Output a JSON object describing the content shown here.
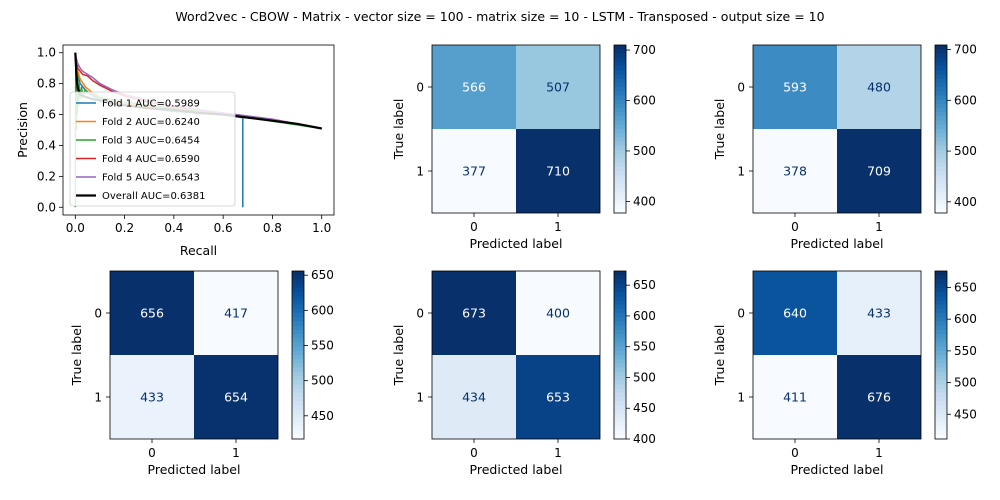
{
  "title": "Word2vec - CBOW - Matrix - vector size = 100 - matrix size = 10 - LSTM - Transposed - output size = 10",
  "chart_data": [
    {
      "type": "line",
      "xlabel": "Recall",
      "ylabel": "Precision",
      "xlim": [
        -0.05,
        1.05
      ],
      "ylim": [
        -0.05,
        1.05
      ],
      "xticks": [
        "0.0",
        "0.2",
        "0.4",
        "0.6",
        "0.8",
        "1.0"
      ],
      "yticks": [
        "0.0",
        "0.2",
        "0.4",
        "0.6",
        "0.8",
        "1.0"
      ],
      "legend_position": "lower-left",
      "series": [
        {
          "name": "Fold 1 AUC=0.5989",
          "color": "#1f77b4",
          "x": [
            0,
            0.005,
            0.01,
            0.02,
            0.04,
            0.07,
            0.1,
            0.15,
            0.2,
            0.3,
            0.4,
            0.5,
            0.6,
            0.68,
            0.68,
            0.68
          ],
          "y": [
            1.0,
            0.9,
            0.85,
            0.8,
            0.76,
            0.72,
            0.7,
            0.68,
            0.66,
            0.64,
            0.62,
            0.61,
            0.6,
            0.58,
            0.3,
            0.0
          ]
        },
        {
          "name": "Fold 2 AUC=0.6240",
          "color": "#ff7f0e",
          "x": [
            0,
            0.005,
            0.01,
            0.02,
            0.04,
            0.07,
            0.1,
            0.15,
            0.2,
            0.3,
            0.4,
            0.5,
            0.6,
            0.7,
            0.8,
            0.9,
            1.0
          ],
          "y": [
            1.0,
            0.92,
            0.88,
            0.83,
            0.78,
            0.74,
            0.71,
            0.69,
            0.67,
            0.65,
            0.63,
            0.62,
            0.6,
            0.58,
            0.56,
            0.54,
            0.51
          ]
        },
        {
          "name": "Fold 3 AUC=0.6454",
          "color": "#2ca02c",
          "x": [
            0,
            0.002,
            0.004,
            0.006,
            0.008,
            0.01,
            0.012,
            0.015,
            0.02,
            0.025,
            0.03,
            0.04,
            0.05,
            0.07,
            0.1,
            0.2,
            0.3,
            0.5,
            0.7,
            1.0
          ],
          "y": [
            0.0,
            1.0,
            0.5,
            0.9,
            0.6,
            0.85,
            0.65,
            0.8,
            0.7,
            0.78,
            0.72,
            0.76,
            0.74,
            0.73,
            0.71,
            0.68,
            0.66,
            0.62,
            0.58,
            0.51
          ]
        },
        {
          "name": "Fold 4 AUC=0.6590",
          "color": "#d62728",
          "x": [
            0,
            0.005,
            0.01,
            0.02,
            0.03,
            0.05,
            0.07,
            0.1,
            0.15,
            0.2,
            0.3,
            0.4,
            0.5,
            0.6,
            0.7,
            0.8,
            0.9,
            1.0
          ],
          "y": [
            1.0,
            0.95,
            0.9,
            0.88,
            0.86,
            0.85,
            0.82,
            0.79,
            0.75,
            0.72,
            0.68,
            0.65,
            0.63,
            0.61,
            0.59,
            0.57,
            0.54,
            0.51
          ]
        },
        {
          "name": "Fold 5 AUC=0.6543",
          "color": "#9467bd",
          "x": [
            0,
            0.005,
            0.01,
            0.02,
            0.03,
            0.05,
            0.07,
            0.1,
            0.15,
            0.2,
            0.3,
            0.4,
            0.5,
            0.6,
            0.7,
            0.8,
            0.9,
            1.0
          ],
          "y": [
            1.0,
            0.96,
            0.93,
            0.9,
            0.88,
            0.86,
            0.84,
            0.8,
            0.76,
            0.73,
            0.69,
            0.66,
            0.63,
            0.61,
            0.59,
            0.57,
            0.54,
            0.51
          ]
        },
        {
          "name": "Overall AUC=0.6381",
          "color": "#000000",
          "x": [
            0,
            0.003,
            0.006,
            0.01,
            0.02,
            0.03,
            0.05,
            0.07,
            0.1,
            0.15,
            0.2,
            0.3,
            0.4,
            0.5,
            0.6,
            0.7,
            0.8,
            0.9,
            1.0
          ],
          "y": [
            1.0,
            0.9,
            0.82,
            0.77,
            0.73,
            0.72,
            0.71,
            0.7,
            0.69,
            0.67,
            0.66,
            0.64,
            0.63,
            0.61,
            0.6,
            0.58,
            0.56,
            0.54,
            0.51
          ]
        }
      ]
    },
    {
      "type": "heatmap",
      "matrix": [
        [
          566,
          507
        ],
        [
          377,
          710
        ]
      ],
      "colorbar_ticks": [
        400,
        500,
        600,
        700
      ],
      "xlabel": "Predicted label",
      "ylabel": "True label",
      "xticklabels": [
        "0",
        "1"
      ],
      "yticklabels": [
        "0",
        "1"
      ]
    },
    {
      "type": "heatmap",
      "matrix": [
        [
          593,
          480
        ],
        [
          378,
          709
        ]
      ],
      "colorbar_ticks": [
        400,
        500,
        600,
        700
      ],
      "xlabel": "Predicted label",
      "ylabel": "True label",
      "xticklabels": [
        "0",
        "1"
      ],
      "yticklabels": [
        "0",
        "1"
      ]
    },
    {
      "type": "heatmap",
      "matrix": [
        [
          656,
          417
        ],
        [
          433,
          654
        ]
      ],
      "colorbar_ticks": [
        450,
        500,
        550,
        600,
        650
      ],
      "xlabel": "Predicted label",
      "ylabel": "True label",
      "xticklabels": [
        "0",
        "1"
      ],
      "yticklabels": [
        "0",
        "1"
      ]
    },
    {
      "type": "heatmap",
      "matrix": [
        [
          673,
          400
        ],
        [
          434,
          653
        ]
      ],
      "colorbar_ticks": [
        400,
        450,
        500,
        550,
        600,
        650
      ],
      "xlabel": "Predicted label",
      "ylabel": "True label",
      "xticklabels": [
        "0",
        "1"
      ],
      "yticklabels": [
        "0",
        "1"
      ]
    },
    {
      "type": "heatmap",
      "matrix": [
        [
          640,
          433
        ],
        [
          411,
          676
        ]
      ],
      "colorbar_ticks": [
        450,
        500,
        550,
        600,
        650
      ],
      "xlabel": "Predicted label",
      "ylabel": "True label",
      "xticklabels": [
        "0",
        "1"
      ],
      "yticklabels": [
        "0",
        "1"
      ]
    }
  ]
}
